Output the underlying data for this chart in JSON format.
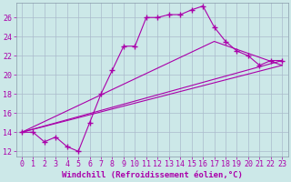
{
  "background_color": "#cce8e8",
  "line_color": "#aa00aa",
  "grid_color": "#aabbcc",
  "xlabel": "Windchill (Refroidissement éolien,°C)",
  "xlabel_fontsize": 6.5,
  "tick_fontsize": 6.0,
  "xlim": [
    -0.5,
    23.5
  ],
  "ylim": [
    11.5,
    27.5
  ],
  "yticks": [
    12,
    14,
    16,
    18,
    20,
    22,
    24,
    26
  ],
  "xticks": [
    0,
    1,
    2,
    3,
    4,
    5,
    6,
    7,
    8,
    9,
    10,
    11,
    12,
    13,
    14,
    15,
    16,
    17,
    18,
    19,
    20,
    21,
    22,
    23
  ],
  "main_line": {
    "x": [
      0,
      1,
      2,
      3,
      4,
      5,
      6,
      7,
      8,
      9,
      10,
      11,
      12,
      13,
      14,
      15,
      16,
      17,
      18,
      19,
      20,
      21,
      22,
      23
    ],
    "y": [
      14.0,
      14.0,
      13.0,
      13.5,
      12.5,
      12.0,
      15.0,
      18.0,
      20.5,
      23.0,
      23.0,
      26.0,
      26.0,
      26.3,
      26.3,
      26.8,
      27.2,
      25.0,
      23.5,
      22.5,
      22.0,
      21.0,
      21.5,
      21.5
    ]
  },
  "straight_lines": [
    {
      "x": [
        0,
        23
      ],
      "y": [
        14.0,
        21.5
      ]
    },
    {
      "x": [
        0,
        23
      ],
      "y": [
        14.0,
        21.0
      ]
    },
    {
      "x": [
        0,
        17,
        23
      ],
      "y": [
        14.0,
        23.5,
        21.0
      ]
    }
  ]
}
